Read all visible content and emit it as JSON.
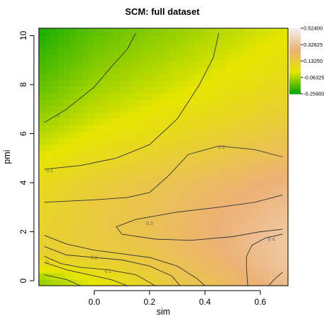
{
  "chart_data": {
    "type": "heatmap",
    "title": "SCM: full dataset",
    "xlabel": "sim",
    "ylabel": "pmi",
    "xlim": [
      -0.2,
      0.7
    ],
    "ylim": [
      -0.2,
      10.3
    ],
    "x_ticks": [
      0.0,
      0.2,
      0.4,
      0.6
    ],
    "x_tick_labels": [
      "0.0",
      "0.2",
      "0.4",
      "0.6"
    ],
    "y_ticks": [
      0,
      2,
      4,
      6,
      8,
      10
    ],
    "y_tick_labels": [
      "0",
      "2",
      "4",
      "6",
      "8",
      "10"
    ],
    "grid": false,
    "legend_position": "right",
    "colorbar": {
      "min": -0.259,
      "max": 0.524,
      "ticks": [
        0.524,
        0.32825,
        0.1325,
        -0.06325,
        -0.259
      ],
      "tick_labels": [
        "0.52400",
        "0.32825",
        "0.13250",
        "-0.06325",
        "-0.25900"
      ],
      "colors": [
        "#00a600",
        "#e6e600",
        "#ecb176",
        "#f2f2f2"
      ]
    },
    "contour_labels": [
      {
        "text": "0",
        "sim": -0.13,
        "pmi": 6.75
      },
      {
        "text": "0.1",
        "sim": -0.16,
        "pmi": 4.5
      },
      {
        "text": "0.2",
        "sim": 0.46,
        "pmi": 5.45
      },
      {
        "text": "0.3",
        "sim": 0.2,
        "pmi": 2.35
      },
      {
        "text": "0.4",
        "sim": 0.64,
        "pmi": 1.7
      },
      {
        "text": "0.2",
        "sim": 0.0,
        "pmi": 0.95
      },
      {
        "text": "0.1",
        "sim": 0.05,
        "pmi": 0.4
      },
      {
        "text": "0",
        "sim": -0.17,
        "pmi": 0.75
      }
    ],
    "contours": [
      {
        "level": 0,
        "points": [
          [
            -0.18,
            6.45
          ],
          [
            -0.1,
            7.0
          ],
          [
            0.0,
            7.9
          ],
          [
            0.06,
            8.7
          ],
          [
            0.12,
            9.45
          ],
          [
            0.15,
            10.1
          ]
        ]
      },
      {
        "level": 0.1,
        "points": [
          [
            -0.18,
            4.55
          ],
          [
            -0.05,
            4.7
          ],
          [
            0.08,
            5.0
          ],
          [
            0.2,
            5.55
          ],
          [
            0.3,
            6.6
          ],
          [
            0.38,
            8.0
          ],
          [
            0.43,
            9.1
          ],
          [
            0.45,
            10.1
          ]
        ]
      },
      {
        "level": 0.2,
        "points": [
          [
            -0.18,
            3.2
          ],
          [
            0.0,
            3.3
          ],
          [
            0.12,
            3.4
          ],
          [
            0.2,
            3.6
          ],
          [
            0.27,
            4.3
          ],
          [
            0.34,
            5.15
          ],
          [
            0.45,
            5.5
          ],
          [
            0.58,
            5.35
          ],
          [
            0.68,
            5.05
          ]
        ]
      },
      {
        "level": 0.3,
        "points": [
          [
            0.68,
            3.5
          ],
          [
            0.58,
            3.2
          ],
          [
            0.45,
            3.0
          ],
          [
            0.3,
            2.8
          ],
          [
            0.15,
            2.5
          ],
          [
            0.08,
            2.2
          ],
          [
            0.1,
            1.9
          ],
          [
            0.22,
            1.7
          ],
          [
            0.35,
            1.65
          ],
          [
            0.5,
            1.8
          ],
          [
            0.6,
            2.0
          ],
          [
            0.68,
            2.1
          ]
        ]
      },
      {
        "level": 0.4,
        "points": [
          [
            0.68,
            1.9
          ],
          [
            0.62,
            1.75
          ],
          [
            0.57,
            1.45
          ],
          [
            0.55,
            1.0
          ],
          [
            0.55,
            0.5
          ],
          [
            0.555,
            -0.2
          ]
        ]
      },
      {
        "level": 0.3,
        "points": [
          [
            -0.18,
            1.85
          ],
          [
            -0.1,
            1.5
          ],
          [
            0.0,
            1.25
          ],
          [
            0.1,
            1.1
          ],
          [
            0.2,
            0.95
          ],
          [
            0.3,
            0.6
          ],
          [
            0.37,
            0.1
          ],
          [
            0.4,
            -0.2
          ]
        ]
      },
      {
        "level": 0.2,
        "points": [
          [
            -0.18,
            1.4
          ],
          [
            -0.1,
            1.05
          ],
          [
            0.0,
            0.95
          ],
          [
            0.1,
            0.85
          ],
          [
            0.2,
            0.6
          ],
          [
            0.28,
            0.2
          ],
          [
            0.31,
            -0.2
          ]
        ]
      },
      {
        "level": 0.1,
        "points": [
          [
            -0.18,
            1.0
          ],
          [
            -0.12,
            0.7
          ],
          [
            -0.05,
            0.55
          ],
          [
            0.05,
            0.45
          ],
          [
            0.15,
            0.25
          ],
          [
            0.22,
            -0.2
          ]
        ]
      },
      {
        "level": 0,
        "points": [
          [
            -0.18,
            0.75
          ],
          [
            -0.1,
            0.45
          ],
          [
            -0.02,
            0.25
          ],
          [
            0.06,
            0.05
          ],
          [
            0.12,
            -0.2
          ]
        ]
      },
      {
        "level": -0.1,
        "points": [
          [
            -0.18,
            0.25
          ],
          [
            -0.1,
            0.05
          ],
          [
            -0.05,
            -0.2
          ]
        ]
      },
      {
        "level": 0.5,
        "points": [
          [
            0.68,
            0.35
          ],
          [
            0.65,
            0.05
          ],
          [
            0.63,
            -0.2
          ]
        ]
      }
    ]
  }
}
